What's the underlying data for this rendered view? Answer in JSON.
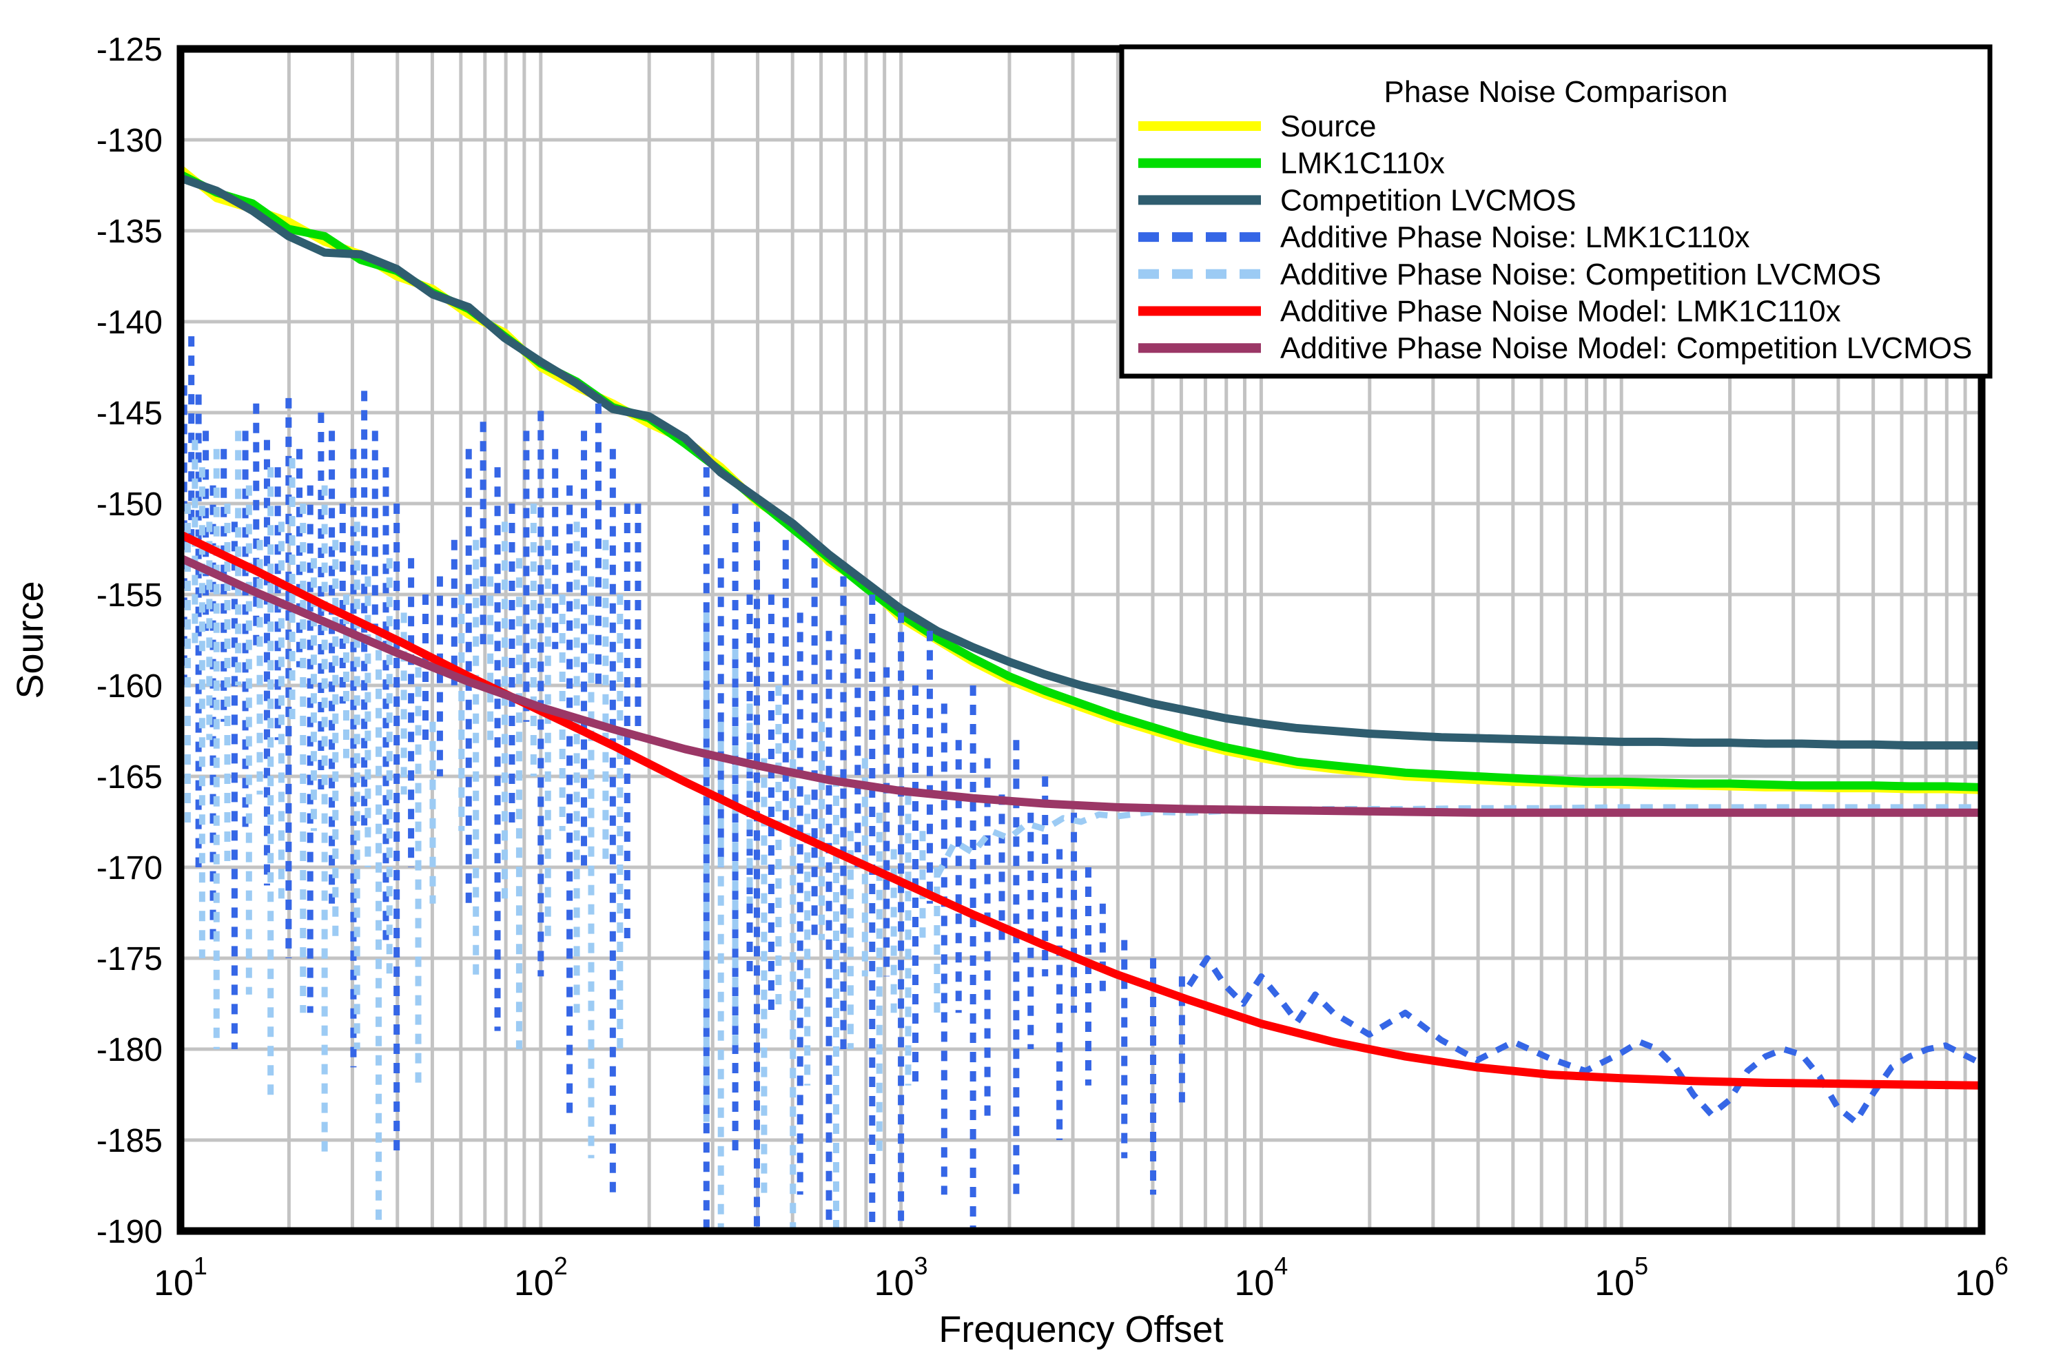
{
  "window": {
    "title": "Phase Noise Comparison"
  },
  "colors": {
    "background": "#FFFFFF",
    "grid": "#C3C3C3",
    "axis_frame": "#000000",
    "text": "#000000",
    "legend_border": "#000000",
    "legend_background": "#FFFFFF"
  },
  "chart_data": {
    "type": "line",
    "title": "Phase Noise Comparison",
    "xlabel": "Frequency Offset",
    "ylabel": "Source",
    "x_scale": "log10",
    "xlim_log10": [
      1,
      6
    ],
    "x_ticks_exponents": [
      1,
      2,
      3,
      4,
      5,
      6
    ],
    "x_tick_base": "10",
    "ylim": [
      -190,
      -125
    ],
    "y_ticks": [
      -125,
      -130,
      -135,
      -140,
      -145,
      -150,
      -155,
      -160,
      -165,
      -170,
      -175,
      -180,
      -185,
      -190
    ],
    "grid": true,
    "legend_position": "top-right",
    "series": [
      {
        "name": "Source",
        "color": "#FFFF00",
        "style": "solid",
        "x0": 1.0,
        "dx": 0.1,
        "values": [
          -131.6,
          -133.2,
          -133.8,
          -134.5,
          -135.6,
          -136.3,
          -137.5,
          -138.2,
          -139.6,
          -140.6,
          -142.5,
          -143.6,
          -144.5,
          -145.6,
          -146.5,
          -148.0,
          -149.9,
          -151.2,
          -153.2,
          -154.4,
          -156.3,
          -157.5,
          -158.7,
          -159.7,
          -160.5,
          -161.2,
          -161.9,
          -162.5,
          -163.1,
          -163.6,
          -164.0,
          -164.35,
          -164.6,
          -164.8,
          -165.0,
          -165.1,
          -165.2,
          -165.3,
          -165.35,
          -165.4,
          -165.45,
          -165.5,
          -165.5,
          -165.55,
          -165.6,
          -165.6,
          -165.65,
          -165.65,
          -165.7,
          -165.7,
          -165.75
        ]
      },
      {
        "name": "LMK1C110x",
        "color": "#00DD00",
        "style": "solid",
        "x0": 1.0,
        "dx": 0.1,
        "values": [
          -131.9,
          -132.9,
          -133.5,
          -134.9,
          -135.3,
          -136.6,
          -137.2,
          -138.4,
          -139.3,
          -140.8,
          -142.3,
          -143.3,
          -144.7,
          -145.3,
          -146.7,
          -148.2,
          -149.8,
          -151.4,
          -153.0,
          -154.6,
          -156.1,
          -157.4,
          -158.5,
          -159.5,
          -160.3,
          -161.0,
          -161.7,
          -162.3,
          -162.9,
          -163.4,
          -163.8,
          -164.2,
          -164.4,
          -164.6,
          -164.8,
          -164.9,
          -165.0,
          -165.1,
          -165.2,
          -165.3,
          -165.3,
          -165.35,
          -165.4,
          -165.4,
          -165.45,
          -165.5,
          -165.5,
          -165.5,
          -165.55,
          -165.55,
          -165.6
        ]
      },
      {
        "name": "Competition LVCMOS",
        "color": "#2F5D6F",
        "style": "solid",
        "x0": 1.0,
        "dx": 0.1,
        "values": [
          -132.1,
          -132.8,
          -133.9,
          -135.3,
          -136.2,
          -136.3,
          -137.1,
          -138.5,
          -139.2,
          -140.9,
          -142.2,
          -143.4,
          -144.8,
          -145.2,
          -146.4,
          -148.3,
          -149.7,
          -151.1,
          -152.8,
          -154.3,
          -155.8,
          -157.0,
          -157.9,
          -158.7,
          -159.4,
          -160.0,
          -160.5,
          -161.0,
          -161.4,
          -161.8,
          -162.1,
          -162.35,
          -162.5,
          -162.65,
          -162.75,
          -162.85,
          -162.9,
          -162.95,
          -163.0,
          -163.05,
          -163.1,
          -163.1,
          -163.15,
          -163.15,
          -163.2,
          -163.2,
          -163.25,
          -163.25,
          -163.3,
          -163.3,
          -163.3
        ]
      },
      {
        "name": "Additive Phase Noise: LMK1C110x",
        "color": "#3566E6",
        "style": "dashed",
        "clusters": [
          [
            1.01,
            -143.5,
            -160
          ],
          [
            1.03,
            -140.8,
            -152
          ],
          [
            1.05,
            -144.0,
            -170
          ],
          [
            1.07,
            -146.0,
            -157
          ],
          [
            1.09,
            -149.0,
            -174
          ],
          [
            1.12,
            -147.0,
            -162
          ],
          [
            1.15,
            -151.0,
            -180
          ],
          [
            1.18,
            -146.0,
            -168
          ],
          [
            1.21,
            -144.5,
            -158
          ],
          [
            1.24,
            -146.5,
            -171
          ],
          [
            1.27,
            -148.0,
            -163
          ],
          [
            1.3,
            -144.2,
            -175
          ],
          [
            1.33,
            -147.0,
            -159
          ],
          [
            1.36,
            -149.0,
            -178
          ],
          [
            1.39,
            -145.0,
            -166
          ],
          [
            1.42,
            -146.0,
            -172
          ],
          [
            1.45,
            -150.0,
            -161
          ],
          [
            1.48,
            -147.0,
            -181
          ],
          [
            1.51,
            -143.8,
            -168
          ],
          [
            1.54,
            -146.0,
            -157
          ],
          [
            1.57,
            -148.0,
            -174
          ],
          [
            1.6,
            -150.0,
            -186
          ],
          [
            1.64,
            -153.0,
            -170
          ],
          [
            1.68,
            -155.0,
            -163
          ],
          [
            1.72,
            -154.0,
            -165
          ],
          [
            1.76,
            -152.0,
            -160
          ],
          [
            1.8,
            -147.0,
            -172
          ],
          [
            1.84,
            -145.5,
            -158
          ],
          [
            1.88,
            -148.0,
            -179
          ],
          [
            1.92,
            -150.0,
            -168
          ],
          [
            1.96,
            -146.0,
            -162
          ],
          [
            2.0,
            -144.9,
            -176
          ],
          [
            2.04,
            -147.0,
            -158
          ],
          [
            2.08,
            -149.0,
            -184
          ],
          [
            2.12,
            -146.0,
            -170
          ],
          [
            2.16,
            -144.5,
            -160
          ],
          [
            2.2,
            -147.0,
            -188
          ],
          [
            2.24,
            -150.0,
            -174
          ],
          [
            2.27,
            -150.0,
            -163
          ],
          [
            2.46,
            -148.0,
            -192
          ],
          [
            2.5,
            -153.0,
            -170
          ],
          [
            2.54,
            -150.0,
            -186
          ],
          [
            2.58,
            -155.0,
            -176
          ],
          [
            2.6,
            -151.0,
            -193
          ],
          [
            2.64,
            -155.0,
            -178
          ],
          [
            2.68,
            -152.0,
            -168
          ],
          [
            2.72,
            -156.0,
            -188
          ],
          [
            2.76,
            -153.0,
            -174
          ],
          [
            2.8,
            -157.0,
            -193
          ],
          [
            2.84,
            -154.0,
            -180
          ],
          [
            2.88,
            -158.0,
            -170
          ],
          [
            2.92,
            -155.0,
            -190
          ],
          [
            2.96,
            -159.0,
            -176
          ],
          [
            3.0,
            -156.0,
            -193
          ],
          [
            3.04,
            -160.0,
            -182
          ],
          [
            3.08,
            -157.0,
            -172
          ],
          [
            3.12,
            -161.0,
            -188
          ],
          [
            3.16,
            -163.0,
            -178
          ],
          [
            3.2,
            -160.0,
            -193
          ],
          [
            3.24,
            -164.0,
            -184
          ],
          [
            3.28,
            -166.0,
            -174
          ],
          [
            3.32,
            -163.0,
            -188
          ],
          [
            3.36,
            -167.0,
            -180
          ],
          [
            3.4,
            -165.0,
            -176
          ],
          [
            3.44,
            -169.0,
            -185
          ],
          [
            3.48,
            -167.0,
            -178
          ],
          [
            3.52,
            -170.0,
            -182
          ],
          [
            3.56,
            -172.0,
            -177
          ],
          [
            3.62,
            -174.0,
            -186
          ],
          [
            3.7,
            -175.0,
            -188
          ],
          [
            3.78,
            -176.0,
            -183
          ]
        ],
        "tail_points": [
          [
            3.8,
            -176.5
          ],
          [
            3.85,
            -175.0
          ],
          [
            3.9,
            -176.5
          ],
          [
            3.95,
            -177.5
          ],
          [
            4.0,
            -176.0
          ],
          [
            4.05,
            -177.2
          ],
          [
            4.1,
            -178.5
          ],
          [
            4.15,
            -177.0
          ],
          [
            4.2,
            -178.0
          ],
          [
            4.3,
            -179.2
          ],
          [
            4.4,
            -178.0
          ],
          [
            4.5,
            -179.5
          ],
          [
            4.6,
            -180.6
          ],
          [
            4.7,
            -179.6
          ],
          [
            4.8,
            -180.5
          ],
          [
            4.9,
            -181.2
          ],
          [
            5.0,
            -180.2
          ],
          [
            5.05,
            -179.6
          ],
          [
            5.1,
            -180.0
          ],
          [
            5.15,
            -181.0
          ],
          [
            5.2,
            -182.5
          ],
          [
            5.25,
            -183.6
          ],
          [
            5.3,
            -182.8
          ],
          [
            5.35,
            -181.2
          ],
          [
            5.4,
            -180.4
          ],
          [
            5.45,
            -180.0
          ],
          [
            5.5,
            -180.3
          ],
          [
            5.55,
            -181.5
          ],
          [
            5.6,
            -183.2
          ],
          [
            5.65,
            -184.0
          ],
          [
            5.7,
            -182.4
          ],
          [
            5.75,
            -181.0
          ],
          [
            5.8,
            -180.4
          ],
          [
            5.85,
            -180.0
          ],
          [
            5.9,
            -179.8
          ],
          [
            5.95,
            -180.3
          ],
          [
            6.0,
            -180.8
          ]
        ]
      },
      {
        "name": "Additive Phase Noise: Competition LVCMOS",
        "color": "#9CCBF4",
        "style": "dashed",
        "clusters": [
          [
            1.02,
            -150,
            -168
          ],
          [
            1.04,
            -146.5,
            -158
          ],
          [
            1.06,
            -148,
            -175
          ],
          [
            1.08,
            -151,
            -163
          ],
          [
            1.1,
            -147,
            -180
          ],
          [
            1.13,
            -150,
            -170
          ],
          [
            1.16,
            -146,
            -160
          ],
          [
            1.19,
            -149,
            -177
          ],
          [
            1.22,
            -152,
            -166
          ],
          [
            1.25,
            -148,
            -183
          ],
          [
            1.28,
            -151,
            -172
          ],
          [
            1.31,
            -147.5,
            -162
          ],
          [
            1.34,
            -150,
            -178
          ],
          [
            1.37,
            -153,
            -168
          ],
          [
            1.4,
            -149,
            -186
          ],
          [
            1.43,
            -152,
            -174
          ],
          [
            1.46,
            -155,
            -164
          ],
          [
            1.49,
            -151,
            -180
          ],
          [
            1.52,
            -154,
            -170
          ],
          [
            1.55,
            -157,
            -190
          ],
          [
            1.58,
            -153,
            -176
          ],
          [
            1.62,
            -156,
            -166
          ],
          [
            1.66,
            -159,
            -182
          ],
          [
            1.7,
            -162,
            -172
          ],
          [
            1.78,
            -155,
            -168
          ],
          [
            1.82,
            -152,
            -176
          ],
          [
            1.86,
            -154,
            -163
          ],
          [
            1.9,
            -151,
            -172
          ],
          [
            1.94,
            -153,
            -180
          ],
          [
            1.98,
            -150,
            -165
          ],
          [
            2.02,
            -152,
            -174
          ],
          [
            2.06,
            -155,
            -168
          ],
          [
            2.1,
            -151,
            -178
          ],
          [
            2.14,
            -154,
            -186
          ],
          [
            2.18,
            -152,
            -170
          ],
          [
            2.22,
            -155,
            -180
          ],
          [
            2.46,
            -156,
            -184
          ],
          [
            2.5,
            -162,
            -193
          ],
          [
            2.54,
            -158,
            -180
          ],
          [
            2.58,
            -161,
            -172
          ],
          [
            2.62,
            -164,
            -188
          ],
          [
            2.66,
            -160,
            -178
          ],
          [
            2.7,
            -163,
            -193
          ],
          [
            2.74,
            -166,
            -182
          ],
          [
            2.78,
            -162,
            -174
          ],
          [
            2.82,
            -165,
            -190
          ],
          [
            2.86,
            -168,
            -180
          ],
          [
            2.9,
            -164,
            -176
          ],
          [
            2.94,
            -167,
            -186
          ],
          [
            2.98,
            -169,
            -178
          ],
          [
            3.02,
            -166,
            -182
          ],
          [
            3.06,
            -168,
            -174
          ],
          [
            3.1,
            -170,
            -178
          ]
        ],
        "tail_points": [
          [
            3.1,
            -170.5
          ],
          [
            3.15,
            -168.6
          ],
          [
            3.2,
            -169.2
          ],
          [
            3.25,
            -168.0
          ],
          [
            3.3,
            -168.4
          ],
          [
            3.35,
            -167.6
          ],
          [
            3.4,
            -167.9
          ],
          [
            3.45,
            -167.3
          ],
          [
            3.5,
            -167.5
          ],
          [
            3.55,
            -167.1
          ],
          [
            3.6,
            -167.2
          ],
          [
            3.7,
            -166.95
          ],
          [
            3.8,
            -167.0
          ],
          [
            3.9,
            -166.9
          ],
          [
            4.0,
            -166.85
          ],
          [
            4.2,
            -166.8
          ],
          [
            4.4,
            -166.8
          ],
          [
            4.6,
            -166.75
          ],
          [
            4.8,
            -166.75
          ],
          [
            5.0,
            -166.7
          ],
          [
            5.25,
            -166.7
          ],
          [
            5.5,
            -166.7
          ],
          [
            5.75,
            -166.7
          ],
          [
            6.0,
            -166.7
          ]
        ]
      },
      {
        "name": "Additive Phase Noise Model: LMK1C110x",
        "color": "#FF0000",
        "style": "solid",
        "x0": 1.0,
        "dx": 0.2,
        "values": [
          -151.7,
          -153.6,
          -155.6,
          -157.5,
          -159.5,
          -161.4,
          -163.3,
          -165.3,
          -167.2,
          -169.0,
          -170.8,
          -172.6,
          -174.3,
          -175.9,
          -177.3,
          -178.6,
          -179.6,
          -180.4,
          -181.0,
          -181.4,
          -181.6,
          -181.75,
          -181.85,
          -181.9,
          -181.95,
          -182.0
        ]
      },
      {
        "name": "Additive Phase Noise Model: Competition LVCMOS",
        "color": "#9B3766",
        "style": "solid",
        "x0": 1.0,
        "dx": 0.2,
        "values": [
          -153.0,
          -154.8,
          -156.5,
          -158.2,
          -159.8,
          -161.2,
          -162.4,
          -163.5,
          -164.4,
          -165.2,
          -165.8,
          -166.2,
          -166.5,
          -166.7,
          -166.8,
          -166.85,
          -166.9,
          -166.95,
          -167.0,
          -167.0,
          -167.0,
          -167.0,
          -167.0,
          -167.0,
          -167.0,
          -167.0
        ]
      }
    ]
  }
}
